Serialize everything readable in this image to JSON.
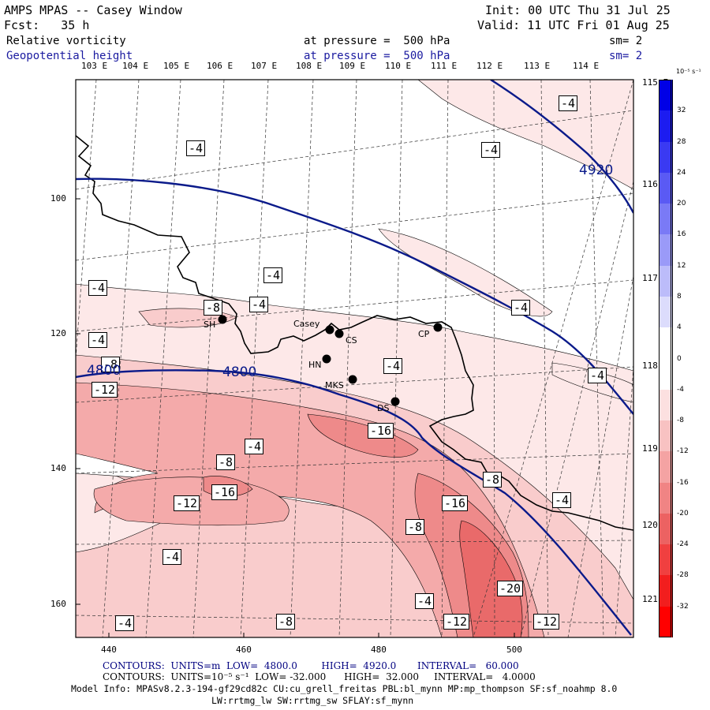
{
  "header": {
    "title": "AMPS MPAS -- Casey Window",
    "init": "Init: 00 UTC Thu 31 Jul 25",
    "forecast": "Fcst:   35 h",
    "valid": "Valid: 11 UTC Fri 01 Aug 25",
    "field1_name": "Relative vorticity",
    "field1_level": "at pressure =  500 hPa",
    "field1_smooth": "sm= 2",
    "field2_name": "Geopotential height",
    "field2_level": "at pressure =  500 hPa",
    "field2_smooth": "sm= 2"
  },
  "top_lon_labels": [
    "103 E",
    "104 E",
    "105 E",
    "106 E",
    "107 E",
    "108 E",
    "109 E",
    "110 E",
    "111 E",
    "112 E",
    "113 E",
    "114 E"
  ],
  "right_lat_labels": [
    "115 E",
    "116 E",
    "117 E",
    "118 E",
    "119 E",
    "120 E",
    "121 E"
  ],
  "left_axis_labels": [
    "100",
    "120",
    "140",
    "160"
  ],
  "bottom_axis_labels": [
    "440",
    "460",
    "480",
    "500"
  ],
  "colorbar": {
    "unit_label": "10⁻⁵ s⁻¹",
    "levels": [
      "32",
      "28",
      "24",
      "20",
      "16",
      "12",
      "8",
      "4",
      "0",
      "-4",
      "-8",
      "-12",
      "-16",
      "-20",
      "-24",
      "-28",
      "-32"
    ],
    "colors": [
      "#0000e6",
      "#1c1cf0",
      "#3a3af2",
      "#5a5af4",
      "#7a7af6",
      "#9a9af8",
      "#bcbcfa",
      "#dcdcfc",
      "#ffffff",
      "#ffffff",
      "#fce0e0",
      "#f8c2c2",
      "#f4a3a3",
      "#f08484",
      "#ec6262",
      "#f04040",
      "#f21e1e",
      "#ff0000"
    ]
  },
  "contour_labels": [
    "-4",
    "-4",
    "-4",
    "-4",
    "-4",
    "-8",
    "-4",
    "-4",
    "-4",
    "-8",
    "-12",
    "-4",
    "-4",
    "-16",
    "-4",
    "-8",
    "-16",
    "-12",
    "-16",
    "-8",
    "-8",
    "-4",
    "-4",
    "-20",
    "-12",
    "-12",
    "-4",
    "-8",
    "-4"
  ],
  "height_labels": [
    "4920",
    "4800",
    "4800"
  ],
  "stations": [
    "SH",
    "Casey",
    "CS",
    "HN",
    "MKS",
    "DS",
    "CP"
  ],
  "footer": {
    "contours1": "CONTOURS:  UNITS=m  LOW=  4800.0        HIGH=  4920.0       INTERVAL=   60.000",
    "contours2": "CONTOURS:  UNITS=10⁻⁵ s⁻¹  LOW= -32.000      HIGH=  32.000     INTERVAL=   4.0000",
    "model_info": "Model Info: MPASv8.2.3-194-gf29cd82c CU:cu_grell_freitas PBL:bl_mynn MP:mp_thompson SF:sf_noahmp 8.0",
    "model_info2": "LW:rrtmg_lw SW:rrtmg_sw SFLAY:sf_mynn"
  },
  "colors": {
    "height_contour": "#0a1a8a",
    "coast": "#000000",
    "station": "#000000"
  }
}
